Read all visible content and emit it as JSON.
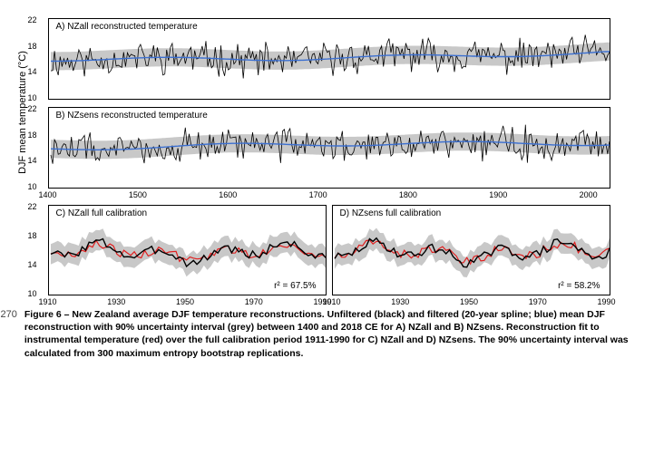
{
  "figure": {
    "yaxis_label": "DJF mean temperature (°C)",
    "line_number": "270",
    "caption": "Figure 6 – New Zealand average DJF temperature reconstructions. Unfiltered (black) and filtered (20-year spline; blue) mean DJF reconstruction with 90% uncertainty interval (grey) between 1400 and 2018 CE for A) NZall and B) NZsens. Reconstruction fit to instrumental temperature (red) over the full calibration period 1911-1990 for C) NZall and D) NZsens.  The 90% uncertainty interval was calculated from 300 maximum entropy bootstrap replications."
  },
  "panelA": {
    "title": "A) NZall reconstructed temperature",
    "type": "line",
    "xlim": [
      1400,
      2020
    ],
    "ylim": [
      10,
      22
    ],
    "yticks": [
      10,
      14,
      18,
      22
    ],
    "xticks": [
      1400,
      1500,
      1600,
      1700,
      1800,
      1900,
      2000
    ],
    "colors": {
      "unfiltered": "#000000",
      "filtered": "#3b6fd1",
      "band": "#c8c8c8",
      "bg": "#ffffff"
    },
    "band_halfwidth": 1.4,
    "filtered_baseline": 16.1,
    "unfiltered_amp": 2.0,
    "filtered_amp": 0.5,
    "trend_end_offset": 0.8
  },
  "panelB": {
    "title": "B) NZsens reconstructed temperature",
    "type": "line",
    "xlim": [
      1400,
      2020
    ],
    "ylim": [
      10,
      22
    ],
    "yticks": [
      10,
      14,
      18,
      22
    ],
    "xticks": [
      1400,
      1500,
      1600,
      1700,
      1800,
      1900,
      2000
    ],
    "colors": {
      "unfiltered": "#000000",
      "filtered": "#3b6fd1",
      "band": "#c8c8c8",
      "bg": "#ffffff"
    },
    "band_halfwidth": 1.4,
    "filtered_baseline": 16.0,
    "unfiltered_amp": 2.1,
    "filtered_amp": 0.5,
    "trend_end_offset": 0.9
  },
  "panelC": {
    "title": "C) NZall full calibration",
    "r2_label": "r² = 67.5%",
    "type": "line",
    "xlim": [
      1910,
      1990
    ],
    "ylim": [
      10,
      22
    ],
    "yticks": [
      10,
      14,
      18,
      22
    ],
    "xticks": [
      1910,
      1930,
      1950,
      1970,
      1990
    ],
    "colors": {
      "recon": "#000000",
      "instrumental": "#e02020",
      "band": "#c8c8c8",
      "bg": "#ffffff"
    },
    "band_halfwidth": 1.4,
    "baseline": 15.8,
    "recon_amp": 1.6,
    "inst_amp": 1.3
  },
  "panelD": {
    "title": "D) NZsens full calibration",
    "r2_label": "r² = 58.2%",
    "type": "line",
    "xlim": [
      1910,
      1990
    ],
    "ylim": [
      10,
      22
    ],
    "yticks": [
      10,
      14,
      18,
      22
    ],
    "xticks": [
      1910,
      1930,
      1950,
      1970,
      1990
    ],
    "colors": {
      "recon": "#000000",
      "instrumental": "#e02020",
      "band": "#c8c8c8",
      "bg": "#ffffff"
    },
    "band_halfwidth": 1.4,
    "baseline": 15.8,
    "recon_amp": 1.6,
    "inst_amp": 1.5
  },
  "layout": {
    "long_panel_w": 620,
    "long_panel_h": 90,
    "short_panel_w": 307,
    "short_panel_h": 100,
    "axis_pad_left": 32,
    "axis_pad_bottom": 14,
    "gap_v": 8,
    "label_fontsize": 9,
    "title_fontsize": 10
  }
}
